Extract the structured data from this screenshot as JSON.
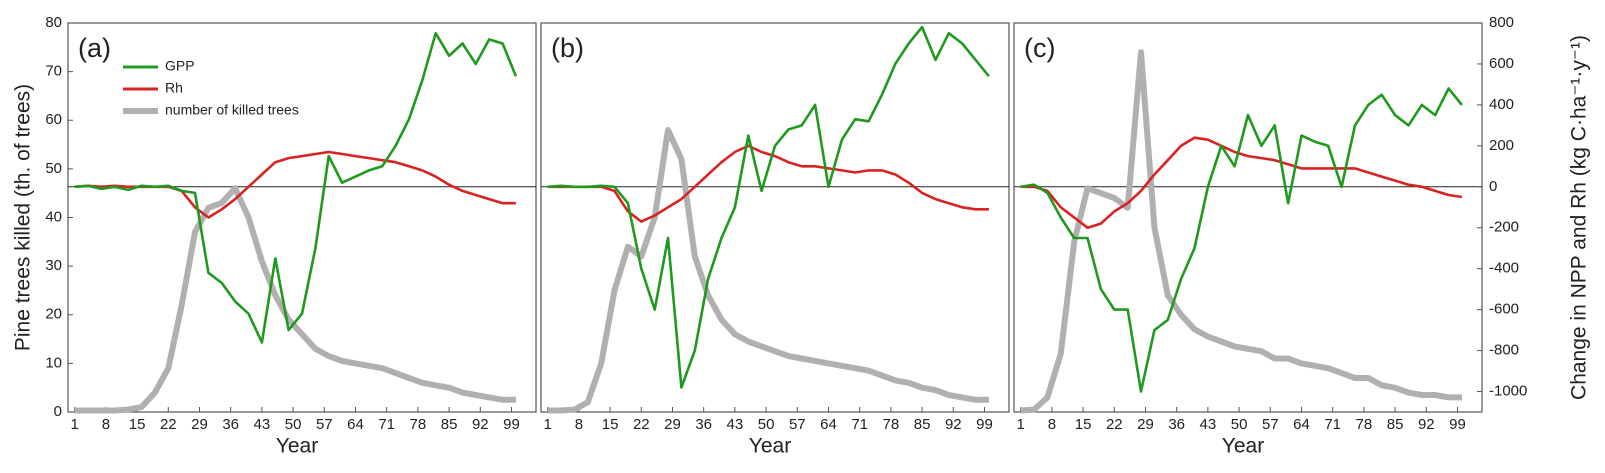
{
  "chart_data": [
    {
      "type": "line",
      "panel_label": "(a)",
      "xlabel": "Year",
      "ylabel": "Pine trees killed (th. of trees)",
      "xlim": [
        -0.5,
        104.5
      ],
      "xticks": [
        1,
        8,
        15,
        22,
        29,
        36,
        43,
        50,
        57,
        64,
        71,
        78,
        85,
        92,
        99
      ],
      "ylim": [
        0,
        80
      ],
      "yticks": [
        0,
        10,
        20,
        30,
        40,
        50,
        60,
        70,
        80
      ],
      "y2lim": [
        -1100,
        800
      ],
      "x": [
        1,
        4,
        7,
        10,
        13,
        16,
        19,
        22,
        25,
        28,
        31,
        34,
        37,
        40,
        43,
        46,
        49,
        52,
        55,
        58,
        61,
        64,
        67,
        70,
        73,
        76,
        79,
        82,
        85,
        88,
        91,
        94,
        97,
        100
      ],
      "series": [
        {
          "name": "GPP",
          "color": "#1f9a1f",
          "axis": "y2",
          "values": [
            0,
            5,
            -10,
            0,
            -15,
            5,
            0,
            5,
            -20,
            -30,
            -420,
            -470,
            -560,
            -620,
            -760,
            -350,
            -700,
            -620,
            -300,
            150,
            20,
            50,
            80,
            100,
            200,
            330,
            520,
            750,
            640,
            700,
            600,
            720,
            700,
            540
          ]
        },
        {
          "name": "Rh",
          "color": "#d92323",
          "axis": "y2",
          "values": [
            0,
            5,
            0,
            5,
            0,
            0,
            0,
            0,
            -20,
            -100,
            -150,
            -110,
            -60,
            0,
            60,
            120,
            140,
            150,
            160,
            170,
            160,
            150,
            140,
            130,
            120,
            100,
            80,
            50,
            10,
            -20,
            -40,
            -60,
            -80,
            -80
          ]
        },
        {
          "name": "number of killed trees",
          "color": "#b0b0b0",
          "axis": "y",
          "values": [
            0.3,
            0.3,
            0.3,
            0.3,
            0.5,
            1,
            4,
            9,
            22,
            37,
            42,
            43,
            46,
            40,
            31,
            24,
            19,
            16,
            13,
            11.5,
            10.5,
            10,
            9.5,
            9,
            8,
            7,
            6,
            5.5,
            5,
            4,
            3.5,
            3,
            2.5,
            2.5
          ]
        }
      ]
    },
    {
      "type": "line",
      "panel_label": "(b)",
      "xlabel": "Year",
      "xlim": [
        -0.5,
        104.5
      ],
      "xticks": [
        1,
        8,
        15,
        22,
        29,
        36,
        43,
        50,
        57,
        64,
        71,
        78,
        85,
        92,
        99
      ],
      "ylim": [
        0,
        80
      ],
      "y2lim": [
        -1100,
        800
      ],
      "x": [
        1,
        4,
        7,
        10,
        13,
        16,
        19,
        22,
        25,
        28,
        31,
        34,
        37,
        40,
        43,
        46,
        49,
        52,
        55,
        58,
        61,
        64,
        67,
        70,
        73,
        76,
        79,
        82,
        85,
        88,
        91,
        94,
        97,
        100
      ],
      "series": [
        {
          "color": "#1f9a1f",
          "axis": "y2",
          "values": [
            0,
            5,
            0,
            0,
            5,
            0,
            -80,
            -400,
            -600,
            -250,
            -980,
            -800,
            -450,
            -250,
            -100,
            250,
            -20,
            200,
            280,
            300,
            400,
            0,
            230,
            330,
            320,
            450,
            600,
            700,
            780,
            620,
            750,
            700,
            620,
            540
          ]
        },
        {
          "color": "#d92323",
          "axis": "y2",
          "values": [
            0,
            0,
            0,
            0,
            0,
            -20,
            -120,
            -170,
            -140,
            -100,
            -60,
            0,
            60,
            120,
            170,
            200,
            170,
            150,
            120,
            100,
            100,
            90,
            80,
            70,
            80,
            80,
            60,
            20,
            -30,
            -60,
            -80,
            -100,
            -110,
            -110
          ]
        },
        {
          "color": "#b0b0b0",
          "axis": "y",
          "values": [
            0.3,
            0.3,
            0.5,
            2,
            10,
            25,
            34,
            32,
            40,
            58,
            52,
            32,
            24,
            19,
            16,
            14.5,
            13.5,
            12.5,
            11.5,
            11,
            10.5,
            10,
            9.5,
            9,
            8.5,
            7.5,
            6.5,
            6,
            5,
            4.5,
            3.5,
            3,
            2.5,
            2.5
          ]
        }
      ]
    },
    {
      "type": "line",
      "panel_label": "(c)",
      "xlabel": "Year",
      "y2label": "Change in NPP and Rh (kg C·ha⁻¹·y⁻¹)",
      "xlim": [
        -0.5,
        104.5
      ],
      "xticks": [
        1,
        8,
        15,
        22,
        29,
        36,
        43,
        50,
        57,
        64,
        71,
        78,
        85,
        92,
        99
      ],
      "ylim": [
        0,
        80
      ],
      "y2lim": [
        -1100,
        800
      ],
      "y2ticks": [
        -1000,
        -800,
        -600,
        -400,
        -200,
        0,
        200,
        400,
        600,
        800
      ],
      "x": [
        1,
        4,
        7,
        10,
        13,
        16,
        19,
        22,
        25,
        28,
        31,
        34,
        37,
        40,
        43,
        46,
        49,
        52,
        55,
        58,
        61,
        64,
        67,
        70,
        73,
        76,
        79,
        82,
        85,
        88,
        91,
        94,
        97,
        100
      ],
      "series": [
        {
          "color": "#1f9a1f",
          "axis": "y2",
          "values": [
            0,
            10,
            -30,
            -150,
            -250,
            -250,
            -500,
            -600,
            -600,
            -1000,
            -700,
            -650,
            -450,
            -300,
            0,
            200,
            100,
            350,
            200,
            300,
            -80,
            250,
            220,
            200,
            0,
            300,
            400,
            450,
            350,
            300,
            400,
            350,
            480,
            400
          ]
        },
        {
          "color": "#d92323",
          "axis": "y2",
          "values": [
            0,
            0,
            -20,
            -100,
            -150,
            -200,
            -180,
            -120,
            -80,
            -20,
            60,
            130,
            200,
            240,
            230,
            200,
            170,
            150,
            140,
            130,
            110,
            90,
            90,
            90,
            90,
            90,
            70,
            50,
            30,
            10,
            0,
            -20,
            -40,
            -50
          ]
        },
        {
          "color": "#b0b0b0",
          "axis": "y",
          "values": [
            0.3,
            0.5,
            3,
            12,
            35,
            46,
            45,
            44,
            42,
            74,
            38,
            24,
            20,
            17,
            15.5,
            14.5,
            13.5,
            13,
            12.5,
            11,
            11,
            10,
            9.5,
            9,
            8,
            7,
            7,
            5.5,
            5,
            4,
            3.5,
            3.5,
            3,
            3
          ]
        }
      ]
    }
  ]
}
